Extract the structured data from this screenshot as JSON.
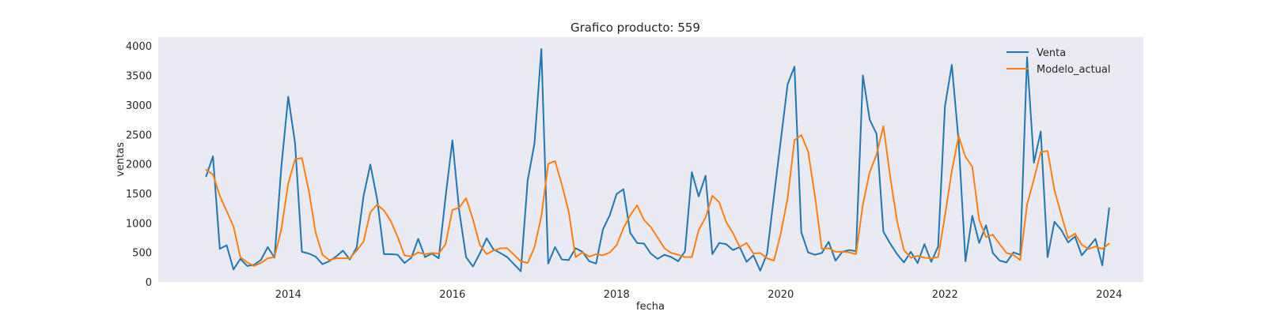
{
  "chart_data": {
    "type": "line",
    "title": "Grafico producto: 559",
    "xlabel": "fecha",
    "ylabel": "ventas",
    "x_start": "2013-01",
    "x_end": "2023-12",
    "xlim": [
      "2012-06",
      "2024-06"
    ],
    "ylim": [
      0,
      4150
    ],
    "xticks": [
      "2014",
      "2016",
      "2018",
      "2020",
      "2022",
      "2024"
    ],
    "yticks": [
      "0",
      "500",
      "1000",
      "1500",
      "2000",
      "2500",
      "3000",
      "3500",
      "4000"
    ],
    "grid": false,
    "background": "#eaeaf2",
    "legend": "top-right",
    "series": [
      {
        "name": "Venta",
        "color": "#1f77b4",
        "values": [
          1790,
          2130,
          560,
          620,
          210,
          390,
          270,
          290,
          370,
          590,
          410,
          1960,
          3140,
          2350,
          510,
          480,
          430,
          300,
          350,
          430,
          530,
          380,
          580,
          1450,
          1990,
          1400,
          470,
          470,
          460,
          320,
          410,
          730,
          420,
          480,
          400,
          1440,
          2400,
          1200,
          420,
          260,
          480,
          740,
          550,
          490,
          420,
          300,
          180,
          1720,
          2350,
          3950,
          310,
          590,
          380,
          370,
          570,
          510,
          350,
          310,
          890,
          1130,
          1490,
          1570,
          830,
          660,
          650,
          480,
          390,
          460,
          420,
          350,
          520,
          1860,
          1450,
          1800,
          470,
          660,
          640,
          540,
          590,
          340,
          450,
          190,
          480,
          1450,
          2400,
          3350,
          3650,
          840,
          500,
          460,
          490,
          680,
          360,
          510,
          540,
          520,
          3500,
          2750,
          2510,
          850,
          650,
          470,
          330,
          510,
          320,
          640,
          340,
          600,
          2980,
          3680,
          2380,
          350,
          1120,
          660,
          960,
          490,
          360,
          330,
          500,
          460,
          3810,
          2020,
          2550,
          420,
          1020,
          880,
          670,
          770,
          450,
          590,
          730,
          280,
          1250
        ]
      },
      {
        "name": "Modelo_actual",
        "color": "#ff7f0e",
        "values": [
          1900,
          1820,
          1460,
          1200,
          940,
          420,
          330,
          270,
          320,
          400,
          420,
          900,
          1670,
          2080,
          2100,
          1550,
          840,
          460,
          370,
          400,
          400,
          400,
          530,
          680,
          1180,
          1310,
          1210,
          1030,
          760,
          450,
          430,
          500,
          470,
          490,
          480,
          640,
          1220,
          1260,
          1420,
          1060,
          630,
          470,
          530,
          570,
          570,
          460,
          350,
          320,
          590,
          1110,
          2000,
          2050,
          1650,
          1190,
          420,
          500,
          430,
          470,
          450,
          500,
          620,
          910,
          1130,
          1300,
          1050,
          930,
          750,
          570,
          490,
          460,
          420,
          420,
          880,
          1090,
          1460,
          1350,
          1020,
          830,
          590,
          660,
          480,
          490,
          400,
          360,
          820,
          1420,
          2400,
          2490,
          2210,
          1450,
          560,
          570,
          510,
          510,
          500,
          470,
          1310,
          1860,
          2160,
          2640,
          1780,
          1030,
          540,
          410,
          440,
          410,
          400,
          420,
          1120,
          1880,
          2470,
          2120,
          1950,
          1050,
          760,
          800,
          640,
          490,
          460,
          370,
          1310,
          1740,
          2200,
          2220,
          1560,
          1140,
          740,
          820,
          630,
          560,
          600,
          560,
          650
        ]
      }
    ]
  }
}
